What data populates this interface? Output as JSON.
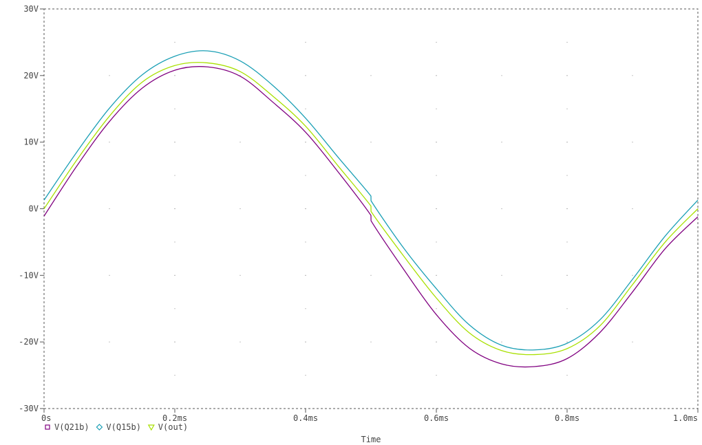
{
  "chart_data": {
    "type": "line",
    "xlabel": "Time",
    "ylabel": "",
    "xlim": [
      0,
      1.0
    ],
    "ylim": [
      -30,
      30
    ],
    "x_ticks": [
      {
        "value": 0,
        "label": "0s"
      },
      {
        "value": 0.2,
        "label": "0.2ms"
      },
      {
        "value": 0.4,
        "label": "0.4ms"
      },
      {
        "value": 0.6,
        "label": "0.6ms"
      },
      {
        "value": 0.8,
        "label": "0.8ms"
      },
      {
        "value": 1.0,
        "label": "1.0ms"
      }
    ],
    "y_ticks": [
      {
        "value": 30,
        "label": "30V"
      },
      {
        "value": 20,
        "label": "20V"
      },
      {
        "value": 10,
        "label": "10V"
      },
      {
        "value": 0,
        "label": "0V"
      },
      {
        "value": -10,
        "label": "-10V"
      },
      {
        "value": -20,
        "label": "-20V"
      },
      {
        "value": -30,
        "label": "-30V"
      }
    ],
    "grid": "dotted",
    "legend_position": "bottom-left",
    "series": [
      {
        "name": "V(Q21b)",
        "color": "#800080",
        "marker": "square",
        "x": [
          0,
          0.05,
          0.1,
          0.15,
          0.2,
          0.25,
          0.3,
          0.35,
          0.4,
          0.45,
          0.5,
          0.5001,
          0.55,
          0.6,
          0.65,
          0.7,
          0.75,
          0.8,
          0.85,
          0.9,
          0.95,
          1.0
        ],
        "values": [
          -1.1,
          6.4,
          13.1,
          18.1,
          20.8,
          21.3,
          19.9,
          16.0,
          11.5,
          5.5,
          -1.0,
          -1.8,
          -9.1,
          -15.9,
          -20.9,
          -23.3,
          -23.7,
          -22.5,
          -18.6,
          -12.5,
          -6.0,
          -1.2
        ]
      },
      {
        "name": "V(Q15b)",
        "color": "#1a9fb5",
        "marker": "diamond",
        "x": [
          0,
          0.05,
          0.1,
          0.15,
          0.2,
          0.25,
          0.3,
          0.35,
          0.4,
          0.45,
          0.5,
          0.5001,
          0.55,
          0.6,
          0.65,
          0.7,
          0.75,
          0.8,
          0.85,
          0.9,
          0.95,
          1.0
        ],
        "values": [
          1.3,
          8.5,
          15.1,
          20.1,
          22.9,
          23.7,
          22.2,
          18.5,
          13.6,
          7.7,
          1.9,
          1.2,
          -5.9,
          -12.0,
          -17.4,
          -20.5,
          -21.2,
          -20.2,
          -16.7,
          -10.6,
          -4.1,
          1.3
        ]
      },
      {
        "name": "V(out)",
        "color": "#a8e000",
        "marker": "triangle",
        "x": [
          0,
          0.05,
          0.1,
          0.15,
          0.2,
          0.25,
          0.3,
          0.35,
          0.4,
          0.45,
          0.5,
          0.5001,
          0.55,
          0.6,
          0.65,
          0.7,
          0.75,
          0.8,
          0.85,
          0.9,
          0.95,
          1.0
        ],
        "values": [
          0.0,
          7.3,
          13.9,
          19.0,
          21.5,
          21.9,
          20.6,
          16.9,
          12.4,
          6.4,
          0.4,
          -0.4,
          -7.1,
          -13.4,
          -18.6,
          -21.3,
          -21.9,
          -21.0,
          -17.6,
          -11.4,
          -5.0,
          0.0
        ]
      }
    ]
  }
}
